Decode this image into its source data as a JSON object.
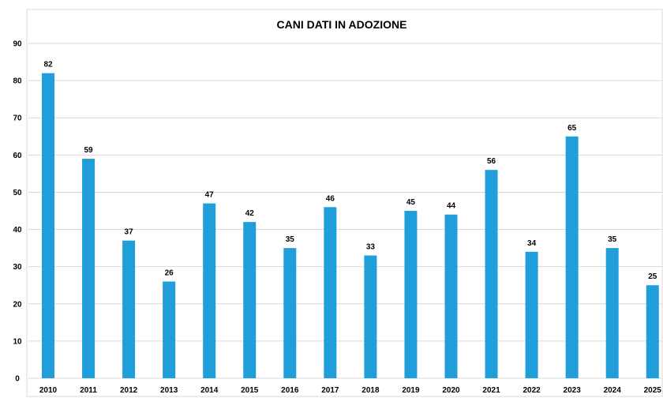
{
  "chart_data": {
    "type": "bar",
    "title": "CANI DATI IN ADOZIONE",
    "xlabel": "",
    "ylabel": "",
    "categories": [
      "2010",
      "2011",
      "2012",
      "2013",
      "2014",
      "2015",
      "2016",
      "2017",
      "2018",
      "2019",
      "2020",
      "2021",
      "2022",
      "2023",
      "2024",
      "2025"
    ],
    "values": [
      82,
      59,
      37,
      26,
      47,
      42,
      35,
      46,
      33,
      45,
      44,
      56,
      34,
      65,
      35,
      25
    ],
    "ylim": [
      0,
      90
    ],
    "yticks": [
      0,
      10,
      20,
      30,
      40,
      50,
      60,
      70,
      80,
      90
    ],
    "grid": true,
    "data_labels": true,
    "bar_color": "#1f9ed9"
  }
}
